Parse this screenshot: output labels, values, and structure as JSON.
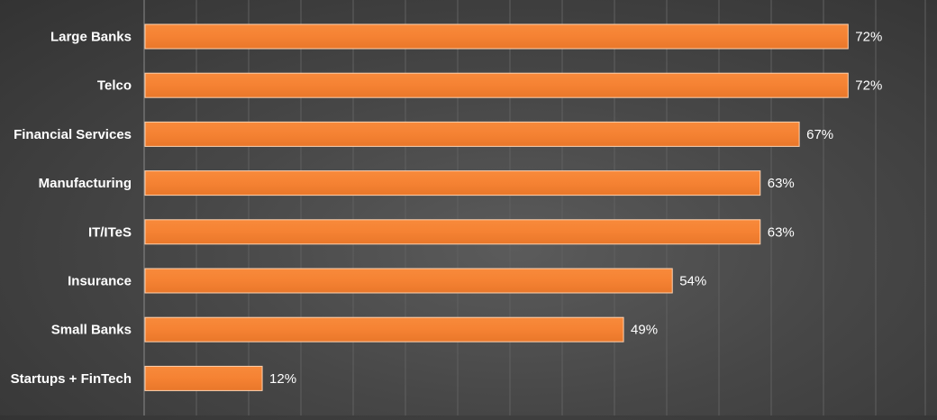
{
  "chart_data": {
    "type": "bar",
    "orientation": "horizontal",
    "categories": [
      "Large Banks",
      "Telco",
      "Financial Services",
      "Manufacturing",
      "IT/ITeS",
      "Insurance",
      "Small Banks",
      "Startups + FinTech"
    ],
    "values": [
      72,
      72,
      67,
      63,
      63,
      54,
      49,
      12
    ],
    "value_labels": [
      "72%",
      "72%",
      "67%",
      "63%",
      "63%",
      "54%",
      "49%",
      "12%"
    ],
    "title": "",
    "xlabel": "",
    "ylabel": "",
    "xlim": [
      0,
      80
    ],
    "grid": "vertical",
    "legend": "none",
    "colors": {
      "bar": "#f58233",
      "bar_edge": "#ffd2b0",
      "text": "#ffffff",
      "gridline": "#606060",
      "axis": "#8a8a8a"
    }
  }
}
